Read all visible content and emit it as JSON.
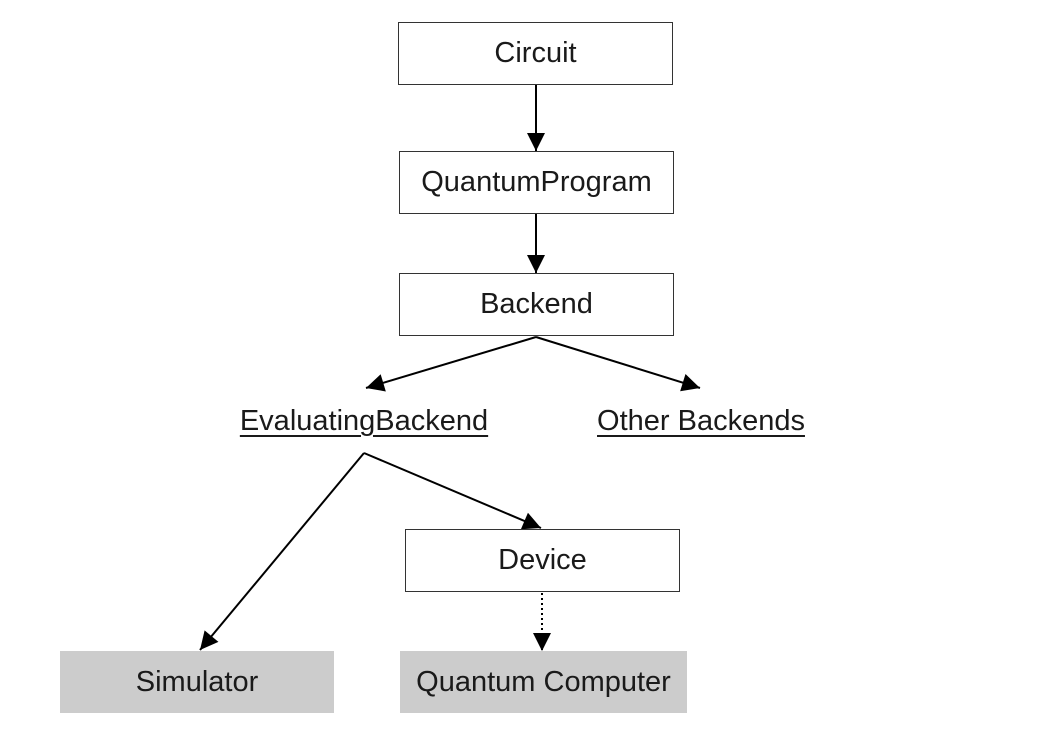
{
  "nodes": {
    "circuit": "Circuit",
    "quantum_program": "QuantumProgram",
    "backend": "Backend",
    "evaluating_backend": "EvaluatingBackend",
    "other_backends": "Other Backends",
    "device": "Device",
    "simulator": "Simulator",
    "quantum_computer": "Quantum Computer"
  },
  "colors": {
    "box_border": "#333333",
    "filled_box": "#cccccc",
    "edge": "#000000",
    "text": "#1a1a1a"
  }
}
